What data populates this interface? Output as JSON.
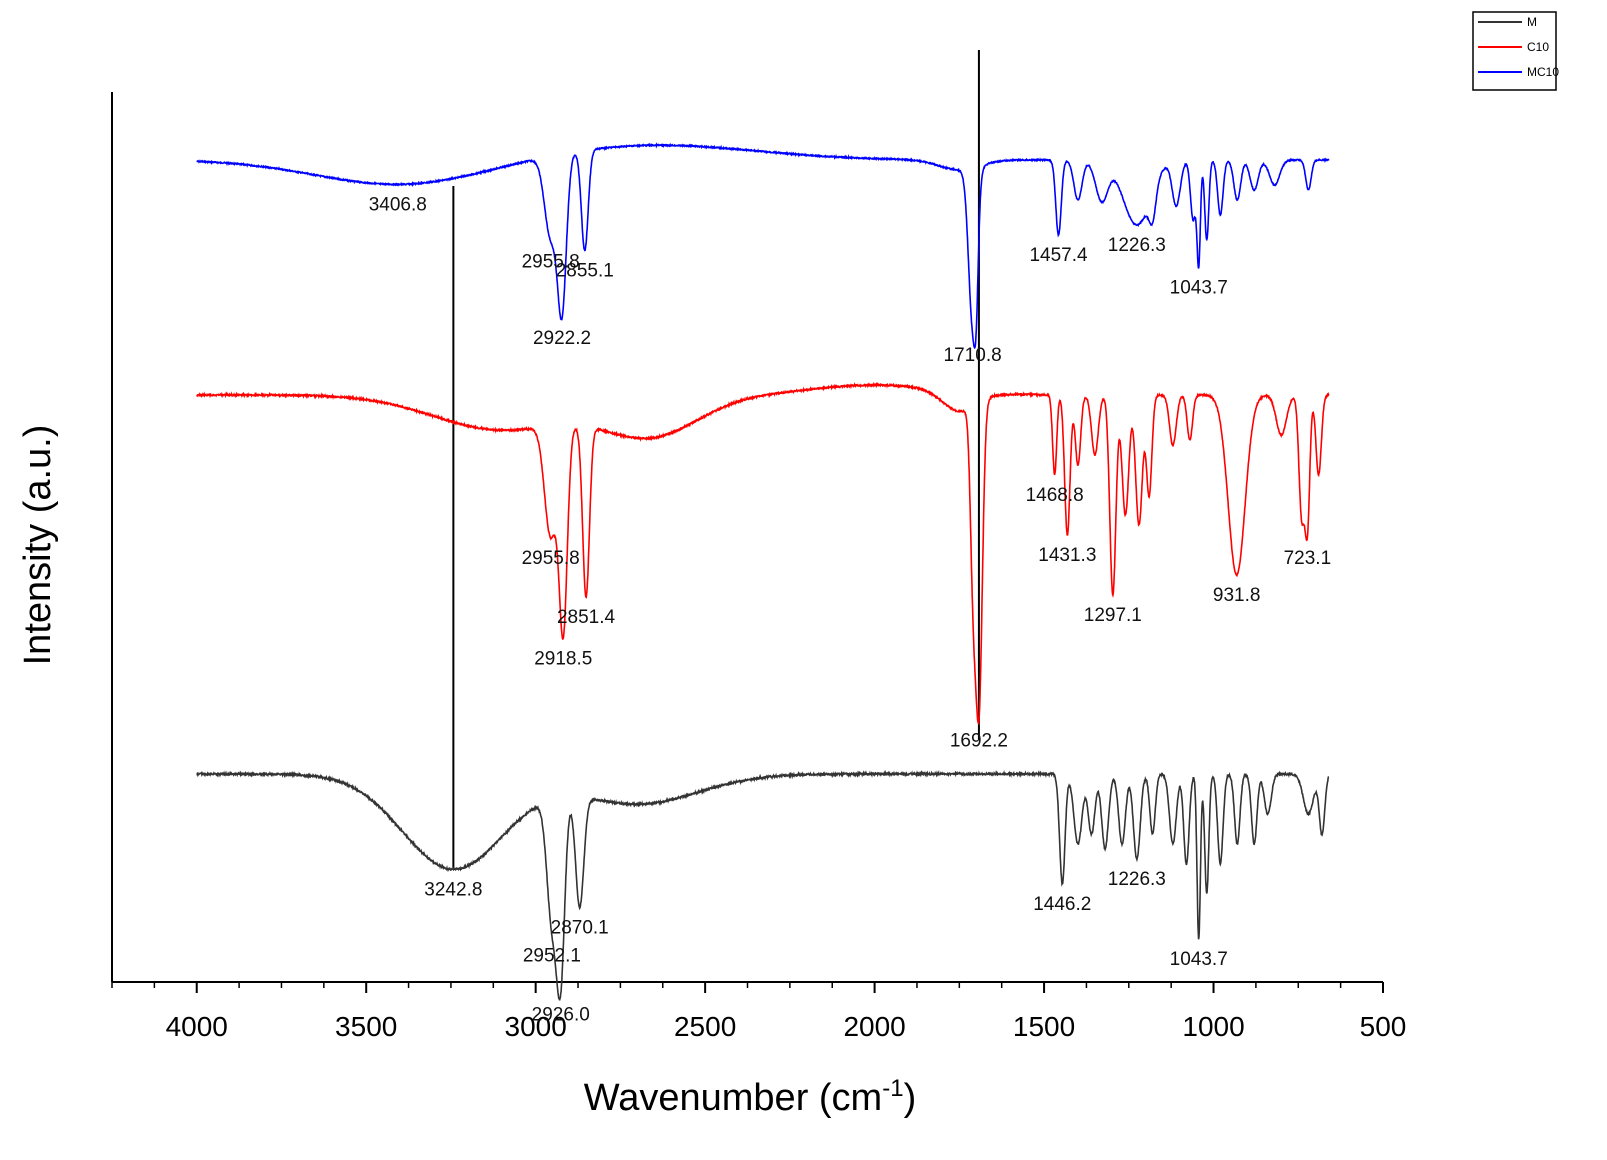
{
  "chart_data": {
    "type": "line",
    "xlabel_main": "Wavenumber (cm",
    "xlabel_sup": "-1",
    "xlabel_tail": ")",
    "ylabel": "Intensity (a.u.)",
    "xlim": [
      4250,
      500
    ],
    "x_reversed": true,
    "ticks": [
      4000,
      3500,
      3000,
      2500,
      2000,
      1500,
      1000,
      500
    ],
    "tick_labels": [
      "4000",
      "3500",
      "3000",
      "2500",
      "2000",
      "1500",
      "1000",
      "500"
    ],
    "y_ticks_shown": false,
    "grid": false,
    "legend": {
      "position": "top-right",
      "entries": [
        "M",
        "C10",
        "MC10"
      ]
    },
    "series": [
      {
        "name": "MC10",
        "color": "#0000ff",
        "offset": 160,
        "noise": 1.2,
        "bands": [
          [
            3400,
            250,
            25
          ],
          [
            2955.8,
            18,
            80
          ],
          [
            2922.2,
            13,
            150
          ],
          [
            2855.1,
            10,
            100
          ],
          [
            2650,
            300,
            -15
          ],
          [
            1750,
            60,
            10
          ],
          [
            1710.8,
            12,
            155
          ],
          [
            1700,
            6,
            60
          ],
          [
            1457.4,
            8,
            75
          ],
          [
            1400,
            12,
            40
          ],
          [
            1330,
            18,
            40
          ],
          [
            1226.3,
            40,
            65
          ],
          [
            1180,
            10,
            30
          ],
          [
            1110,
            12,
            45
          ],
          [
            1060,
            8,
            60
          ],
          [
            1043.7,
            5,
            100
          ],
          [
            1020,
            6,
            80
          ],
          [
            980,
            8,
            55
          ],
          [
            930,
            10,
            40
          ],
          [
            880,
            12,
            30
          ],
          [
            820,
            15,
            25
          ],
          [
            720,
            8,
            30
          ]
        ],
        "peak_labels": [
          {
            "text": "3406.8",
            "x": 3406.8
          },
          {
            "text": "2955.8",
            "x": 2955.8
          },
          {
            "text": "2922.2",
            "x": 2922.2
          },
          {
            "text": "2855.1",
            "x": 2855.1
          },
          {
            "text": "1710.8",
            "x": 1710.8
          },
          {
            "text": "1457.4",
            "x": 1457.4
          },
          {
            "text": "1226.3",
            "x": 1226.3
          },
          {
            "text": "1043.7",
            "x": 1043.7
          }
        ]
      },
      {
        "name": "C10",
        "color": "#ff0000",
        "offset": 395,
        "noise": 1.6,
        "bands": [
          [
            3100,
            200,
            35
          ],
          [
            2955.8,
            18,
            110
          ],
          [
            2918.5,
            12,
            200
          ],
          [
            2851.4,
            10,
            170
          ],
          [
            2660,
            140,
            40
          ],
          [
            2000,
            180,
            -10
          ],
          [
            1750,
            50,
            20
          ],
          [
            1692.2,
            10,
            305
          ],
          [
            1710,
            8,
            150
          ],
          [
            1468.8,
            6,
            80
          ],
          [
            1431.3,
            8,
            140
          ],
          [
            1400,
            8,
            70
          ],
          [
            1350,
            10,
            60
          ],
          [
            1297.1,
            9,
            200
          ],
          [
            1260,
            10,
            120
          ],
          [
            1220,
            10,
            130
          ],
          [
            1190,
            8,
            100
          ],
          [
            1120,
            10,
            50
          ],
          [
            1070,
            8,
            45
          ],
          [
            931.8,
            25,
            180
          ],
          [
            800,
            15,
            40
          ],
          [
            740,
            8,
            120
          ],
          [
            723.1,
            7,
            130
          ],
          [
            690,
            8,
            80
          ]
        ],
        "peak_labels": [
          {
            "text": "2955.8",
            "x": 2955.8
          },
          {
            "text": "2918.5",
            "x": 2918.5
          },
          {
            "text": "2851.4",
            "x": 2851.4
          },
          {
            "text": "1692.2",
            "x": 1692.2
          },
          {
            "text": "1468.8",
            "x": 1468.8
          },
          {
            "text": "1431.3",
            "x": 1431.3
          },
          {
            "text": "1297.1",
            "x": 1297.1
          },
          {
            "text": "931.8",
            "x": 931.8
          },
          {
            "text": "723.1",
            "x": 723.1
          }
        ]
      },
      {
        "name": "M",
        "color": "#333333",
        "offset": 774,
        "noise": 2.0,
        "bands": [
          [
            3242.8,
            150,
            95
          ],
          [
            2952.1,
            15,
            120
          ],
          [
            2926.0,
            12,
            170
          ],
          [
            2870.1,
            12,
            110
          ],
          [
            2700,
            180,
            30
          ],
          [
            1446.2,
            8,
            110
          ],
          [
            1400,
            12,
            70
          ],
          [
            1360,
            10,
            60
          ],
          [
            1320,
            10,
            75
          ],
          [
            1270,
            10,
            70
          ],
          [
            1226.3,
            10,
            85
          ],
          [
            1180,
            8,
            60
          ],
          [
            1120,
            10,
            70
          ],
          [
            1080,
            8,
            90
          ],
          [
            1043.7,
            5,
            165
          ],
          [
            1020,
            6,
            120
          ],
          [
            980,
            8,
            90
          ],
          [
            930,
            8,
            70
          ],
          [
            880,
            8,
            70
          ],
          [
            840,
            10,
            40
          ],
          [
            720,
            15,
            40
          ],
          [
            680,
            8,
            60
          ]
        ],
        "peak_labels": [
          {
            "text": "3242.8",
            "x": 3242.8
          },
          {
            "text": "2952.1",
            "x": 2952.1
          },
          {
            "text": "2926.0",
            "x": 2926.0
          },
          {
            "text": "2870.1",
            "x": 2870.1
          },
          {
            "text": "1446.2",
            "x": 1446.2
          },
          {
            "text": "1226.3",
            "x": 1226.3
          },
          {
            "text": "1043.7",
            "x": 1043.7
          }
        ]
      }
    ],
    "reference_lines": [
      3242.8,
      1692.2
    ]
  }
}
